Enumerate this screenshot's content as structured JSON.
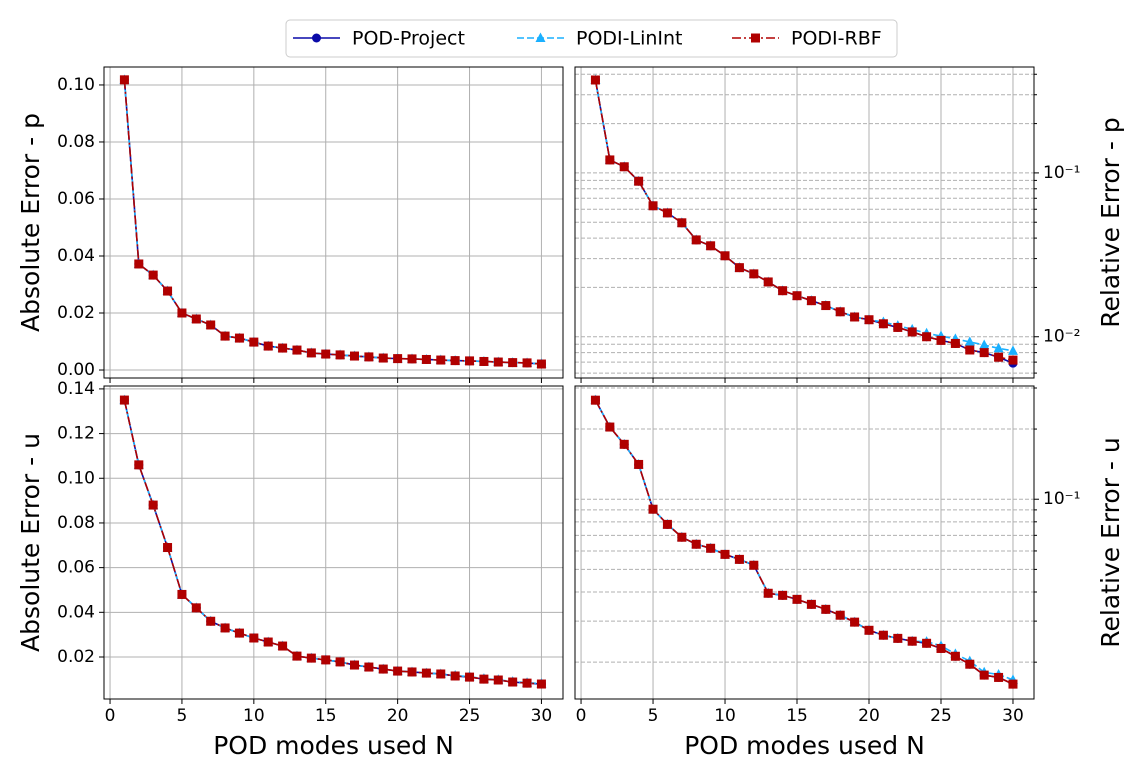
{
  "chart_data": [
    {
      "type": "line",
      "legend": "upper center",
      "ylabel": "Absolute Error - p",
      "x": [
        1,
        2,
        3,
        4,
        5,
        6,
        7,
        8,
        9,
        10,
        11,
        12,
        13,
        14,
        15,
        16,
        17,
        18,
        19,
        20,
        21,
        22,
        23,
        24,
        25,
        26,
        27,
        28,
        29,
        30
      ],
      "xlim": [
        -0.42,
        31.5
      ],
      "xticks": [
        0,
        5,
        10,
        15,
        20,
        25,
        30
      ],
      "xtick_labels": false,
      "ylim": [
        -0.0028,
        0.1063
      ],
      "yticks": [
        {
          "value": 0,
          "label": "0.00"
        },
        0.02,
        0.04,
        0.06,
        0.08,
        {
          "value": 0.1,
          "label": "0.10"
        }
      ],
      "grid": true,
      "y_axis_side": "left",
      "series": [
        {
          "name": "POD-Project",
          "color": "#0a0aa8",
          "marker": "circle",
          "linestyle": "solid",
          "values": [
            0.1018,
            0.0372,
            0.0333,
            0.0277,
            0.02,
            0.0179,
            0.0158,
            0.0119,
            0.0112,
            0.0098,
            0.0084,
            0.0077,
            0.007,
            0.006,
            0.0056,
            0.0053,
            0.0049,
            0.0046,
            0.0042,
            0.004,
            0.0039,
            0.0037,
            0.0035,
            0.0033,
            0.0032,
            0.003,
            0.0028,
            0.0026,
            0.0025,
            0.0021
          ]
        },
        {
          "name": "PODI-LinInt",
          "color": "#1ab0ff",
          "marker": "triangle",
          "linestyle": "dashed",
          "values": [
            0.1018,
            0.0372,
            0.0333,
            0.0277,
            0.02,
            0.0179,
            0.0158,
            0.0119,
            0.0112,
            0.0098,
            0.0084,
            0.0077,
            0.007,
            0.006,
            0.0056,
            0.0053,
            0.0049,
            0.0046,
            0.0042,
            0.004,
            0.0039,
            0.0037,
            0.0035,
            0.0033,
            0.0032,
            0.003,
            0.0028,
            0.0026,
            0.0025,
            0.0022
          ]
        },
        {
          "name": "PODI-RBF",
          "color": "#b00000",
          "marker": "square",
          "linestyle": "dashdot",
          "values": [
            0.1018,
            0.0372,
            0.0333,
            0.0277,
            0.02,
            0.0179,
            0.0158,
            0.0119,
            0.0112,
            0.0098,
            0.0084,
            0.0077,
            0.007,
            0.006,
            0.0056,
            0.0053,
            0.0049,
            0.0046,
            0.0042,
            0.004,
            0.0039,
            0.0037,
            0.0035,
            0.0033,
            0.0032,
            0.003,
            0.0028,
            0.0026,
            0.0025,
            0.0021
          ]
        }
      ]
    },
    {
      "type": "line",
      "ylabel": "Relative Error - p",
      "log_y": true,
      "x": [
        1,
        2,
        3,
        4,
        5,
        6,
        7,
        8,
        9,
        10,
        11,
        12,
        13,
        14,
        15,
        16,
        17,
        18,
        19,
        20,
        21,
        22,
        23,
        24,
        25,
        26,
        27,
        28,
        29,
        30
      ],
      "xlim": [
        -0.42,
        31.46
      ],
      "xticks": [
        0,
        5,
        10,
        15,
        20,
        25,
        30
      ],
      "xtick_labels": false,
      "ylim": [
        0.0056,
        0.443
      ],
      "yticks": [
        {
          "value": 0.1,
          "label": "10⁻¹"
        },
        {
          "value": 0.01,
          "label": "10⁻²"
        }
      ],
      "yminor_ticks": [
        0.006,
        0.007,
        0.008,
        0.009,
        0.02,
        0.03,
        0.04,
        0.05,
        0.06,
        0.07,
        0.08,
        0.09,
        0.2,
        0.3,
        0.4
      ],
      "grid": true,
      "ygrid_style": "dashed",
      "y_axis_side": "right",
      "series": [
        {
          "color": "#0a0aa8",
          "marker": "circle",
          "linestyle": "solid",
          "values": [
            0.369,
            0.12,
            0.109,
            0.089,
            0.063,
            0.057,
            0.0496,
            0.039,
            0.0359,
            0.0312,
            0.0264,
            0.0242,
            0.0216,
            0.0191,
            0.0178,
            0.0166,
            0.0155,
            0.0142,
            0.0132,
            0.0127,
            0.012,
            0.0114,
            0.0107,
            0.01,
            0.0095,
            0.0091,
            0.0083,
            0.008,
            0.0075,
            0.0069
          ]
        },
        {
          "color": "#1ab0ff",
          "marker": "triangle",
          "linestyle": "dashed",
          "values": [
            0.369,
            0.12,
            0.109,
            0.089,
            0.063,
            0.057,
            0.0496,
            0.039,
            0.0359,
            0.0312,
            0.0264,
            0.0242,
            0.0216,
            0.0191,
            0.0178,
            0.0166,
            0.0155,
            0.0142,
            0.0132,
            0.0127,
            0.0123,
            0.0117,
            0.0111,
            0.0105,
            0.0101,
            0.0097,
            0.0093,
            0.0089,
            0.0085,
            0.0082
          ]
        },
        {
          "color": "#b00000",
          "marker": "square",
          "linestyle": "dashdot",
          "values": [
            0.369,
            0.12,
            0.109,
            0.089,
            0.063,
            0.057,
            0.0496,
            0.039,
            0.0359,
            0.0312,
            0.0264,
            0.0242,
            0.0216,
            0.0191,
            0.0178,
            0.0166,
            0.0155,
            0.0142,
            0.0132,
            0.0127,
            0.012,
            0.0114,
            0.0107,
            0.01,
            0.0095,
            0.0091,
            0.0083,
            0.008,
            0.0075,
            0.0072
          ]
        }
      ]
    },
    {
      "type": "line",
      "ylabel": "Absolute Error - u",
      "xlabel": "POD modes used N",
      "x": [
        1,
        2,
        3,
        4,
        5,
        6,
        7,
        8,
        9,
        10,
        11,
        12,
        13,
        14,
        15,
        16,
        17,
        18,
        19,
        20,
        21,
        22,
        23,
        24,
        25,
        26,
        27,
        28,
        29,
        30
      ],
      "xlim": [
        -0.42,
        31.5
      ],
      "xticks": [
        0,
        5,
        10,
        15,
        20,
        25,
        30
      ],
      "xtick_labels": true,
      "ylim": [
        0.0012,
        0.1413
      ],
      "yticks": [
        0.02,
        0.04,
        0.06,
        0.08,
        {
          "value": 0.1,
          "label": "0.10"
        },
        0.12,
        0.14
      ],
      "grid": true,
      "y_axis_side": "left",
      "series": [
        {
          "color": "#0a0aa8",
          "marker": "circle",
          "linestyle": "solid",
          "values": [
            0.135,
            0.106,
            0.088,
            0.069,
            0.048,
            0.042,
            0.036,
            0.033,
            0.0307,
            0.0285,
            0.0267,
            0.0249,
            0.0204,
            0.0195,
            0.0187,
            0.0178,
            0.0164,
            0.0155,
            0.0146,
            0.0137,
            0.0133,
            0.0128,
            0.0124,
            0.0115,
            0.011,
            0.0101,
            0.0097,
            0.0088,
            0.0083,
            0.0079
          ]
        },
        {
          "color": "#1ab0ff",
          "marker": "triangle",
          "linestyle": "dashed",
          "values": [
            0.135,
            0.106,
            0.088,
            0.069,
            0.048,
            0.042,
            0.036,
            0.033,
            0.0307,
            0.0285,
            0.0267,
            0.0249,
            0.0204,
            0.0195,
            0.0187,
            0.0178,
            0.0164,
            0.0155,
            0.0146,
            0.0137,
            0.0133,
            0.0128,
            0.0124,
            0.0117,
            0.0112,
            0.0103,
            0.0098,
            0.009,
            0.0085,
            0.0081
          ]
        },
        {
          "color": "#b00000",
          "marker": "square",
          "linestyle": "dashdot",
          "values": [
            0.135,
            0.106,
            0.088,
            0.069,
            0.048,
            0.042,
            0.036,
            0.033,
            0.0307,
            0.0285,
            0.0267,
            0.0249,
            0.0204,
            0.0195,
            0.0187,
            0.0178,
            0.0164,
            0.0155,
            0.0146,
            0.0137,
            0.0133,
            0.0128,
            0.0124,
            0.0115,
            0.011,
            0.0101,
            0.0097,
            0.0088,
            0.0083,
            0.0079
          ]
        }
      ]
    },
    {
      "type": "line",
      "ylabel": "Relative Error - u",
      "xlabel": "POD modes used N",
      "log_y": true,
      "x": [
        1,
        2,
        3,
        4,
        5,
        6,
        7,
        8,
        9,
        10,
        11,
        12,
        13,
        14,
        15,
        16,
        17,
        18,
        19,
        20,
        21,
        22,
        23,
        24,
        25,
        26,
        27,
        28,
        29,
        30
      ],
      "xlim": [
        -0.42,
        31.46
      ],
      "xticks": [
        0,
        5,
        10,
        15,
        20,
        25,
        30
      ],
      "xtick_labels": true,
      "ylim": [
        0.0139,
        0.306
      ],
      "yticks": [
        {
          "value": 0.1,
          "label": "10⁻¹"
        }
      ],
      "yminor_ticks": [
        0.02,
        0.03,
        0.04,
        0.05,
        0.06,
        0.07,
        0.08,
        0.09,
        0.2,
        0.3
      ],
      "grid": true,
      "ygrid_style": "dashed",
      "y_axis_side": "right",
      "series": [
        {
          "color": "#0a0aa8",
          "marker": "circle",
          "linestyle": "solid",
          "values": [
            0.266,
            0.204,
            0.172,
            0.141,
            0.0906,
            0.078,
            0.0687,
            0.0641,
            0.0616,
            0.058,
            0.0552,
            0.0521,
            0.0395,
            0.0387,
            0.0372,
            0.0354,
            0.0337,
            0.0318,
            0.0297,
            0.0274,
            0.0261,
            0.0253,
            0.0246,
            0.0241,
            0.0229,
            0.0212,
            0.0196,
            0.0176,
            0.0172,
            0.0161
          ]
        },
        {
          "color": "#1ab0ff",
          "marker": "triangle",
          "linestyle": "dashed",
          "values": [
            0.266,
            0.204,
            0.172,
            0.141,
            0.0906,
            0.078,
            0.0687,
            0.0641,
            0.0616,
            0.058,
            0.0552,
            0.0521,
            0.0395,
            0.0387,
            0.0372,
            0.0354,
            0.0337,
            0.0318,
            0.0297,
            0.0274,
            0.0261,
            0.0253,
            0.0246,
            0.0245,
            0.0235,
            0.0217,
            0.0202,
            0.0181,
            0.0177,
            0.0168
          ]
        },
        {
          "color": "#b00000",
          "marker": "square",
          "linestyle": "dashdot",
          "values": [
            0.266,
            0.204,
            0.172,
            0.141,
            0.0906,
            0.078,
            0.0687,
            0.0641,
            0.0616,
            0.058,
            0.0552,
            0.0521,
            0.0395,
            0.0387,
            0.0372,
            0.0354,
            0.0337,
            0.0318,
            0.0297,
            0.0274,
            0.0261,
            0.0253,
            0.0246,
            0.0241,
            0.0229,
            0.0212,
            0.0196,
            0.0176,
            0.0172,
            0.0161
          ]
        }
      ]
    }
  ]
}
